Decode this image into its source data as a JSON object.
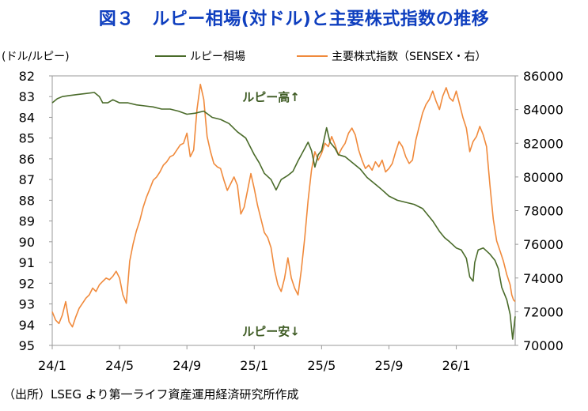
{
  "title": "図３　ルピー相場(対ドル)と主要株式指数の推移",
  "source": "（出所）LSEG より第一ライフ資産運用経済研究所作成",
  "chart_data": {
    "type": "line",
    "left_unit_label": "(ドル/ルピー)",
    "y_left": {
      "min": 82,
      "max": 95,
      "inverted": true,
      "ticks": [
        82,
        83,
        84,
        85,
        86,
        87,
        88,
        89,
        90,
        91,
        92,
        93,
        94,
        95
      ]
    },
    "y_right": {
      "min": 70000,
      "max": 86000,
      "ticks": [
        70000,
        72000,
        74000,
        76000,
        78000,
        80000,
        82000,
        84000,
        86000
      ]
    },
    "x_ticks": [
      {
        "label": "24/1",
        "t": 0
      },
      {
        "label": "24/5",
        "t": 4
      },
      {
        "label": "24/9",
        "t": 8
      },
      {
        "label": "25/1",
        "t": 12
      },
      {
        "label": "25/5",
        "t": 16
      },
      {
        "label": "25/9",
        "t": 20
      },
      {
        "label": "26/1",
        "t": 24
      }
    ],
    "x_range": [
      0,
      27.5
    ],
    "grid": false,
    "legend_position": "top",
    "annotations": [
      {
        "text": "ルピー高↑",
        "t": 13.0,
        "y_left": 83.0
      },
      {
        "text": "ルピー安↓",
        "t": 13.0,
        "y_left": 94.3
      }
    ],
    "series": [
      {
        "name": "ルピー相場",
        "axis": "left",
        "color": "#4a6b2a",
        "points": [
          [
            0,
            83.3
          ],
          [
            0.3,
            83.1
          ],
          [
            0.6,
            83.0
          ],
          [
            1.0,
            82.95
          ],
          [
            1.5,
            82.9
          ],
          [
            2.0,
            82.85
          ],
          [
            2.5,
            82.8
          ],
          [
            2.8,
            83.0
          ],
          [
            3.0,
            83.3
          ],
          [
            3.3,
            83.3
          ],
          [
            3.6,
            83.15
          ],
          [
            4.0,
            83.3
          ],
          [
            4.5,
            83.3
          ],
          [
            5.0,
            83.4
          ],
          [
            5.5,
            83.45
          ],
          [
            6.0,
            83.5
          ],
          [
            6.5,
            83.6
          ],
          [
            7.0,
            83.6
          ],
          [
            7.5,
            83.7
          ],
          [
            8.0,
            83.85
          ],
          [
            8.5,
            83.8
          ],
          [
            9.0,
            83.7
          ],
          [
            9.5,
            84.0
          ],
          [
            10.0,
            84.1
          ],
          [
            10.5,
            84.3
          ],
          [
            11.0,
            84.7
          ],
          [
            11.5,
            85.0
          ],
          [
            12.0,
            85.8
          ],
          [
            12.3,
            86.2
          ],
          [
            12.6,
            86.7
          ],
          [
            13.0,
            87.0
          ],
          [
            13.3,
            87.5
          ],
          [
            13.6,
            87.0
          ],
          [
            14.0,
            86.8
          ],
          [
            14.3,
            86.6
          ],
          [
            14.6,
            86.1
          ],
          [
            15.0,
            85.5
          ],
          [
            15.2,
            85.2
          ],
          [
            15.4,
            85.6
          ],
          [
            15.6,
            86.4
          ],
          [
            15.8,
            85.8
          ],
          [
            16.0,
            85.6
          ],
          [
            16.3,
            84.5
          ],
          [
            16.5,
            85.2
          ],
          [
            16.8,
            85.5
          ],
          [
            17.0,
            85.8
          ],
          [
            17.4,
            85.9
          ],
          [
            17.7,
            86.1
          ],
          [
            18.0,
            86.3
          ],
          [
            18.3,
            86.5
          ],
          [
            18.7,
            86.9
          ],
          [
            19.0,
            87.1
          ],
          [
            19.3,
            87.3
          ],
          [
            19.6,
            87.5
          ],
          [
            20.0,
            87.8
          ],
          [
            20.5,
            88.0
          ],
          [
            21.0,
            88.1
          ],
          [
            21.5,
            88.2
          ],
          [
            22.0,
            88.4
          ],
          [
            22.3,
            88.7
          ],
          [
            22.6,
            89.0
          ],
          [
            23.0,
            89.5
          ],
          [
            23.3,
            89.8
          ],
          [
            23.6,
            90.0
          ],
          [
            24.0,
            90.3
          ],
          [
            24.3,
            90.4
          ],
          [
            24.6,
            90.8
          ],
          [
            24.8,
            91.7
          ],
          [
            25.0,
            91.9
          ],
          [
            25.1,
            91.0
          ],
          [
            25.3,
            90.4
          ],
          [
            25.6,
            90.3
          ],
          [
            26.0,
            90.6
          ],
          [
            26.3,
            90.9
          ],
          [
            26.5,
            91.3
          ],
          [
            26.7,
            92.2
          ],
          [
            27.0,
            92.8
          ],
          [
            27.2,
            93.5
          ],
          [
            27.35,
            94.7
          ],
          [
            27.5,
            93.6
          ]
        ]
      },
      {
        "name": "主要株式指数（SENSEX・右）",
        "axis": "right",
        "color": "#f08a3c",
        "points": [
          [
            0,
            72000
          ],
          [
            0.2,
            71500
          ],
          [
            0.4,
            71300
          ],
          [
            0.6,
            71800
          ],
          [
            0.8,
            72600
          ],
          [
            1.0,
            71400
          ],
          [
            1.2,
            71100
          ],
          [
            1.4,
            71700
          ],
          [
            1.6,
            72200
          ],
          [
            1.8,
            72500
          ],
          [
            2.0,
            72800
          ],
          [
            2.2,
            73000
          ],
          [
            2.4,
            73400
          ],
          [
            2.6,
            73200
          ],
          [
            2.8,
            73600
          ],
          [
            3.0,
            73800
          ],
          [
            3.2,
            74000
          ],
          [
            3.4,
            73900
          ],
          [
            3.6,
            74100
          ],
          [
            3.8,
            74400
          ],
          [
            4.0,
            74000
          ],
          [
            4.2,
            73000
          ],
          [
            4.4,
            72500
          ],
          [
            4.6,
            75000
          ],
          [
            4.8,
            76000
          ],
          [
            5.0,
            76800
          ],
          [
            5.2,
            77400
          ],
          [
            5.4,
            78200
          ],
          [
            5.6,
            78800
          ],
          [
            5.8,
            79300
          ],
          [
            6.0,
            79800
          ],
          [
            6.2,
            80000
          ],
          [
            6.4,
            80300
          ],
          [
            6.6,
            80700
          ],
          [
            6.8,
            80900
          ],
          [
            7.0,
            81200
          ],
          [
            7.2,
            81300
          ],
          [
            7.4,
            81600
          ],
          [
            7.6,
            81900
          ],
          [
            7.8,
            82000
          ],
          [
            8.0,
            82600
          ],
          [
            8.2,
            81200
          ],
          [
            8.4,
            81600
          ],
          [
            8.6,
            84000
          ],
          [
            8.8,
            85500
          ],
          [
            9.0,
            84600
          ],
          [
            9.2,
            82400
          ],
          [
            9.4,
            81500
          ],
          [
            9.6,
            80800
          ],
          [
            9.8,
            80600
          ],
          [
            10.0,
            80500
          ],
          [
            10.2,
            79800
          ],
          [
            10.4,
            79200
          ],
          [
            10.6,
            79600
          ],
          [
            10.8,
            80000
          ],
          [
            11.0,
            79500
          ],
          [
            11.2,
            77800
          ],
          [
            11.4,
            78200
          ],
          [
            11.6,
            79200
          ],
          [
            11.8,
            80200
          ],
          [
            12.0,
            79300
          ],
          [
            12.2,
            78300
          ],
          [
            12.4,
            77500
          ],
          [
            12.6,
            76700
          ],
          [
            12.8,
            76400
          ],
          [
            13.0,
            75800
          ],
          [
            13.2,
            74500
          ],
          [
            13.4,
            73600
          ],
          [
            13.6,
            73200
          ],
          [
            13.8,
            74000
          ],
          [
            14.0,
            75200
          ],
          [
            14.2,
            74000
          ],
          [
            14.4,
            73400
          ],
          [
            14.6,
            73000
          ],
          [
            14.8,
            74500
          ],
          [
            15.0,
            76400
          ],
          [
            15.2,
            78600
          ],
          [
            15.4,
            80400
          ],
          [
            15.6,
            81500
          ],
          [
            15.8,
            81000
          ],
          [
            16.0,
            81400
          ],
          [
            16.2,
            82000
          ],
          [
            16.4,
            81800
          ],
          [
            16.6,
            82400
          ],
          [
            16.8,
            81900
          ],
          [
            17.0,
            81300
          ],
          [
            17.2,
            81700
          ],
          [
            17.4,
            82000
          ],
          [
            17.6,
            82600
          ],
          [
            17.8,
            82900
          ],
          [
            18.0,
            82500
          ],
          [
            18.2,
            81600
          ],
          [
            18.4,
            81000
          ],
          [
            18.6,
            80500
          ],
          [
            18.8,
            80700
          ],
          [
            19.0,
            80400
          ],
          [
            19.2,
            80900
          ],
          [
            19.4,
            80600
          ],
          [
            19.6,
            81000
          ],
          [
            19.8,
            80300
          ],
          [
            20.0,
            80500
          ],
          [
            20.2,
            80800
          ],
          [
            20.4,
            81500
          ],
          [
            20.6,
            82100
          ],
          [
            20.8,
            81800
          ],
          [
            21.0,
            81200
          ],
          [
            21.2,
            80800
          ],
          [
            21.4,
            81000
          ],
          [
            21.6,
            82200
          ],
          [
            21.8,
            83000
          ],
          [
            22.0,
            83800
          ],
          [
            22.2,
            84300
          ],
          [
            22.4,
            84600
          ],
          [
            22.6,
            85100
          ],
          [
            22.8,
            84500
          ],
          [
            23.0,
            84000
          ],
          [
            23.2,
            84800
          ],
          [
            23.4,
            85300
          ],
          [
            23.6,
            84700
          ],
          [
            23.8,
            84500
          ],
          [
            24.0,
            85100
          ],
          [
            24.2,
            84300
          ],
          [
            24.4,
            83500
          ],
          [
            24.6,
            82900
          ],
          [
            24.8,
            81500
          ],
          [
            25.0,
            82100
          ],
          [
            25.2,
            82400
          ],
          [
            25.4,
            83000
          ],
          [
            25.6,
            82500
          ],
          [
            25.8,
            81800
          ],
          [
            26.0,
            79500
          ],
          [
            26.2,
            77500
          ],
          [
            26.4,
            76200
          ],
          [
            26.6,
            75600
          ],
          [
            26.8,
            75000
          ],
          [
            27.0,
            74200
          ],
          [
            27.2,
            73600
          ],
          [
            27.3,
            73000
          ],
          [
            27.4,
            72700
          ],
          [
            27.5,
            72600
          ]
        ]
      }
    ]
  }
}
